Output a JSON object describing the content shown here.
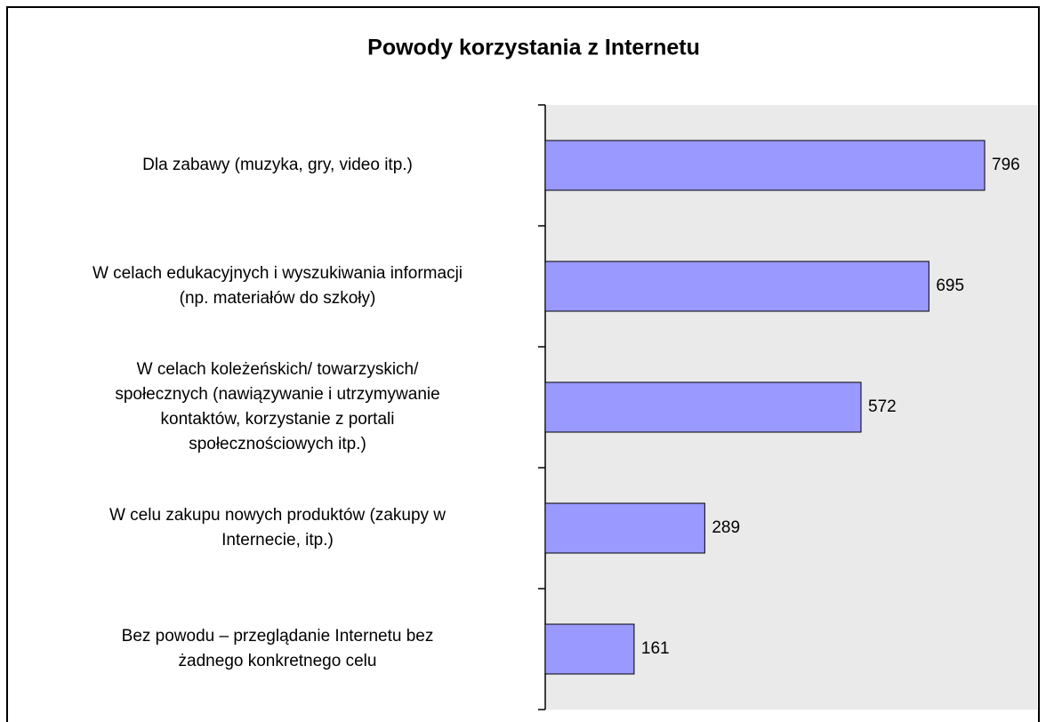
{
  "chart_data": {
    "type": "bar",
    "orientation": "horizontal",
    "title": "Powody korzystania z Internetu",
    "categories": [
      "Dla zabawy (muzyka, gry, video itp.)",
      "W celach edukacyjnych i wyszukiwania informacji\n(np. materiałów do szkoły)",
      "W celach koleżeńskich/ towarzyskich/\nspołecznych (nawiązywanie i utrzymywanie\nkontaktów, korzystanie z portali\nspołecznościowych itp.)",
      "W celu zakupu nowych produktów (zakupy w\nInternecie, itp.)",
      "Bez powodu – przeglądanie Internetu bez\nżadnego konkretnego celu"
    ],
    "values": [
      796,
      695,
      572,
      289,
      161
    ],
    "color": "#9999ff",
    "xlim": [
      0,
      891
    ],
    "plot_background": "#eaeaea"
  }
}
